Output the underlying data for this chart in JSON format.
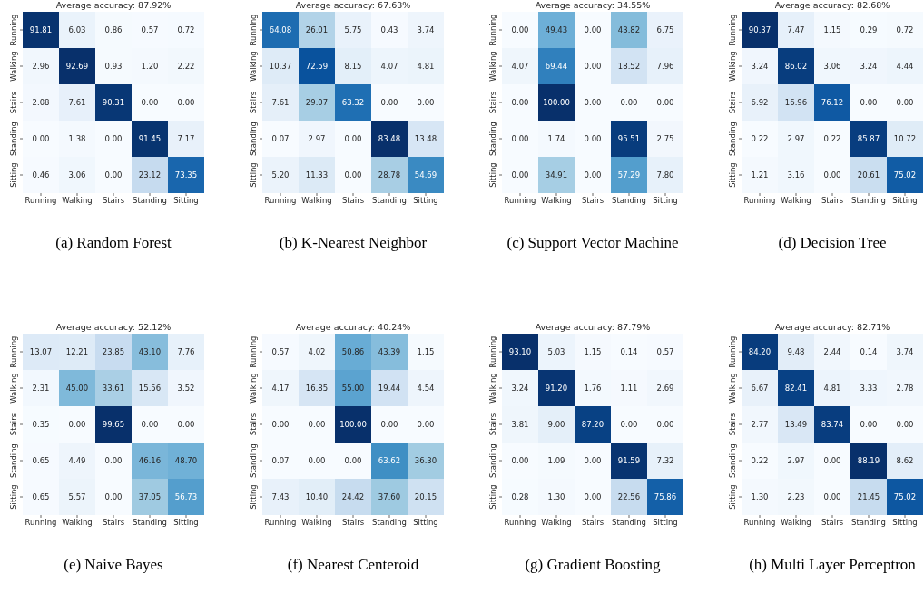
{
  "chart_data": [
    {
      "type": "heatmap",
      "title": "Average accuracy: 87.92%",
      "annotations": [
        "(a) Random Forest"
      ],
      "categories": [
        "Running",
        "Walking",
        "Stairs",
        "Standing",
        "Sitting"
      ],
      "y_categories": [
        "Running",
        "Walking",
        "Stairs",
        "Standing",
        "Sitting"
      ],
      "cells": [
        [
          91.81,
          6.03,
          0.86,
          0.57,
          0.72
        ],
        [
          2.96,
          92.69,
          0.93,
          1.2,
          2.22
        ],
        [
          2.08,
          7.61,
          90.31,
          0,
          0
        ],
        [
          0,
          1.38,
          0,
          91.45,
          7.17
        ],
        [
          0.46,
          3.06,
          0,
          23.12,
          73.35
        ]
      ],
      "cell_labels": [
        [
          "91.81",
          "6.03",
          "0.86",
          "0.57",
          "0.72"
        ],
        [
          "2.96",
          "92.69",
          "0.93",
          "1.20",
          "2.22"
        ],
        [
          "2.08",
          "7.61",
          "90.31",
          "0.00",
          "0.00"
        ],
        [
          "0.00",
          "1.38",
          "0.00",
          "91.45",
          "7.17"
        ],
        [
          "0.46",
          "3.06",
          "0.00",
          "23.12",
          "73.35"
        ]
      ]
    },
    {
      "type": "heatmap",
      "title": "Average accuracy: 67.63%",
      "annotations": [
        "(b) K-Nearest Neighbor"
      ],
      "categories": [
        "Running",
        "Walking",
        "Stairs",
        "Standing",
        "Sitting"
      ],
      "y_categories": [
        "Running",
        "Walking",
        "Stairs",
        "Standing",
        "Sitting"
      ],
      "cells": [
        [
          64.08,
          26.01,
          5.75,
          0.43,
          3.74
        ],
        [
          10.37,
          72.59,
          8.15,
          4.07,
          4.81
        ],
        [
          7.61,
          29.07,
          63.32,
          0,
          0
        ],
        [
          0.07,
          2.97,
          0,
          83.48,
          13.48
        ],
        [
          5.2,
          11.33,
          0,
          28.78,
          54.69
        ]
      ],
      "cell_labels": [
        [
          "64.08",
          "26.01",
          "5.75",
          "0.43",
          "3.74"
        ],
        [
          "10.37",
          "72.59",
          "8.15",
          "4.07",
          "4.81"
        ],
        [
          "7.61",
          "29.07",
          "63.32",
          "0.00",
          "0.00"
        ],
        [
          "0.07",
          "2.97",
          "0.00",
          "83.48",
          "13.48"
        ],
        [
          "5.20",
          "11.33",
          "0.00",
          "28.78",
          "54.69"
        ]
      ]
    },
    {
      "type": "heatmap",
      "title": "Average accuracy: 34.55%",
      "annotations": [
        "(c) Support Vector Machine"
      ],
      "categories": [
        "Running",
        "Walking",
        "Stairs",
        "Standing",
        "Sitting"
      ],
      "y_categories": [
        "Running",
        "Walking",
        "Stairs",
        "Standing",
        "Sitting"
      ],
      "cells": [
        [
          0,
          49.43,
          0,
          43.82,
          6.75
        ],
        [
          4.07,
          69.44,
          0,
          18.52,
          7.96
        ],
        [
          0,
          100,
          0,
          0,
          0
        ],
        [
          0,
          1.74,
          0,
          95.51,
          2.75
        ],
        [
          0,
          34.91,
          0,
          57.29,
          7.8
        ]
      ],
      "cell_labels": [
        [
          "0.00",
          "49.43",
          "0.00",
          "43.82",
          "6.75"
        ],
        [
          "4.07",
          "69.44",
          "0.00",
          "18.52",
          "7.96"
        ],
        [
          "0.00",
          "100.00",
          "0.00",
          "0.00",
          "0.00"
        ],
        [
          "0.00",
          "1.74",
          "0.00",
          "95.51",
          "2.75"
        ],
        [
          "0.00",
          "34.91",
          "0.00",
          "57.29",
          "7.80"
        ]
      ]
    },
    {
      "type": "heatmap",
      "title": "Average accuracy: 82.68%",
      "annotations": [
        "(d) Decision Tree"
      ],
      "categories": [
        "Running",
        "Walking",
        "Stairs",
        "Standing",
        "Sitting"
      ],
      "y_categories": [
        "Running",
        "Walking",
        "Stairs",
        "Standing",
        "Sitting"
      ],
      "cells": [
        [
          90.37,
          7.47,
          1.15,
          0.29,
          0.72
        ],
        [
          3.24,
          86.02,
          3.06,
          3.24,
          4.44
        ],
        [
          6.92,
          16.96,
          76.12,
          0,
          0
        ],
        [
          0.22,
          2.97,
          0.22,
          85.87,
          10.72
        ],
        [
          1.21,
          3.16,
          0,
          20.61,
          75.02
        ]
      ],
      "cell_labels": [
        [
          "90.37",
          "7.47",
          "1.15",
          "0.29",
          "0.72"
        ],
        [
          "3.24",
          "86.02",
          "3.06",
          "3.24",
          "4.44"
        ],
        [
          "6.92",
          "16.96",
          "76.12",
          "0.00",
          "0.00"
        ],
        [
          "0.22",
          "2.97",
          "0.22",
          "85.87",
          "10.72"
        ],
        [
          "1.21",
          "3.16",
          "0.00",
          "20.61",
          "75.02"
        ]
      ]
    },
    {
      "type": "heatmap",
      "title": "Average accuracy: 52.12%",
      "annotations": [
        "(e) Naive Bayes"
      ],
      "categories": [
        "Running",
        "Walking",
        "Stairs",
        "Standing",
        "Sitting"
      ],
      "y_categories": [
        "Running",
        "Walking",
        "Stairs",
        "Standing",
        "Sitting"
      ],
      "cells": [
        [
          13.07,
          12.21,
          23.85,
          43.1,
          7.76
        ],
        [
          2.31,
          45.0,
          33.61,
          15.56,
          3.52
        ],
        [
          0.35,
          0,
          99.65,
          0,
          0
        ],
        [
          0.65,
          4.49,
          0,
          46.16,
          48.7
        ],
        [
          0.65,
          5.57,
          0,
          37.05,
          56.73
        ]
      ],
      "cell_labels": [
        [
          "13.07",
          "12.21",
          "23.85",
          "43.10",
          "7.76"
        ],
        [
          "2.31",
          "45.00",
          "33.61",
          "15.56",
          "3.52"
        ],
        [
          "0.35",
          "0.00",
          "99.65",
          "0.00",
          "0.00"
        ],
        [
          "0.65",
          "4.49",
          "0.00",
          "46.16",
          "48.70"
        ],
        [
          "0.65",
          "5.57",
          "0.00",
          "37.05",
          "56.73"
        ]
      ]
    },
    {
      "type": "heatmap",
      "title": "Average accuracy: 40.24%",
      "annotations": [
        "(f) Nearest Centeroid"
      ],
      "categories": [
        "Running",
        "Walking",
        "Stairs",
        "Standing",
        "Sitting"
      ],
      "y_categories": [
        "Running",
        "Walking",
        "Stairs",
        "Standing",
        "Sitting"
      ],
      "cells": [
        [
          0.57,
          4.02,
          50.86,
          43.39,
          1.15
        ],
        [
          4.17,
          16.85,
          55.0,
          19.44,
          4.54
        ],
        [
          0,
          0,
          100,
          0,
          0
        ],
        [
          0.07,
          0,
          0,
          63.62,
          36.3
        ],
        [
          7.43,
          10.4,
          24.42,
          37.6,
          20.15
        ]
      ],
      "cell_labels": [
        [
          "0.57",
          "4.02",
          "50.86",
          "43.39",
          "1.15"
        ],
        [
          "4.17",
          "16.85",
          "55.00",
          "19.44",
          "4.54"
        ],
        [
          "0.00",
          "0.00",
          "100.00",
          "0.00",
          "0.00"
        ],
        [
          "0.07",
          "0.00",
          "0.00",
          "63.62",
          "36.30"
        ],
        [
          "7.43",
          "10.40",
          "24.42",
          "37.60",
          "20.15"
        ]
      ]
    },
    {
      "type": "heatmap",
      "title": "Average accuracy: 87.79%",
      "annotations": [
        "(g) Gradient Boosting"
      ],
      "categories": [
        "Running",
        "Walking",
        "Stairs",
        "Standing",
        "Sitting"
      ],
      "y_categories": [
        "Running",
        "Walking",
        "Stairs",
        "Standing",
        "Sitting"
      ],
      "cells": [
        [
          93.1,
          5.03,
          1.15,
          0.14,
          0.57
        ],
        [
          3.24,
          91.2,
          1.76,
          1.11,
          2.69
        ],
        [
          3.81,
          9.0,
          87.2,
          0,
          0
        ],
        [
          0,
          1.09,
          0,
          91.59,
          7.32
        ],
        [
          0.28,
          1.3,
          0,
          22.56,
          75.86
        ]
      ],
      "cell_labels": [
        [
          "93.10",
          "5.03",
          "1.15",
          "0.14",
          "0.57"
        ],
        [
          "3.24",
          "91.20",
          "1.76",
          "1.11",
          "2.69"
        ],
        [
          "3.81",
          "9.00",
          "87.20",
          "0.00",
          "0.00"
        ],
        [
          "0.00",
          "1.09",
          "0.00",
          "91.59",
          "7.32"
        ],
        [
          "0.28",
          "1.30",
          "0.00",
          "22.56",
          "75.86"
        ]
      ]
    },
    {
      "type": "heatmap",
      "title": "Average accuracy: 82.71%",
      "annotations": [
        "(h) Multi Layer Perceptron"
      ],
      "categories": [
        "Running",
        "Walking",
        "Stairs",
        "Standing",
        "Sitting"
      ],
      "y_categories": [
        "Running",
        "Walking",
        "Stairs",
        "Standing",
        "Sitting"
      ],
      "cells": [
        [
          84.2,
          9.48,
          2.44,
          0.14,
          3.74
        ],
        [
          6.67,
          82.41,
          4.81,
          3.33,
          2.78
        ],
        [
          2.77,
          13.49,
          83.74,
          0,
          0
        ],
        [
          0.22,
          2.97,
          0,
          88.19,
          8.62
        ],
        [
          1.3,
          2.23,
          0,
          21.45,
          75.02
        ]
      ],
      "cell_labels": [
        [
          "84.20",
          "9.48",
          "2.44",
          "0.14",
          "3.74"
        ],
        [
          "6.67",
          "82.41",
          "4.81",
          "3.33",
          "2.78"
        ],
        [
          "2.77",
          "13.49",
          "83.74",
          "0.00",
          "0.00"
        ],
        [
          "0.22",
          "2.97",
          "0.00",
          "88.19",
          "8.62"
        ],
        [
          "1.30",
          "2.23",
          "0.00",
          "21.45",
          "75.02"
        ]
      ]
    }
  ]
}
